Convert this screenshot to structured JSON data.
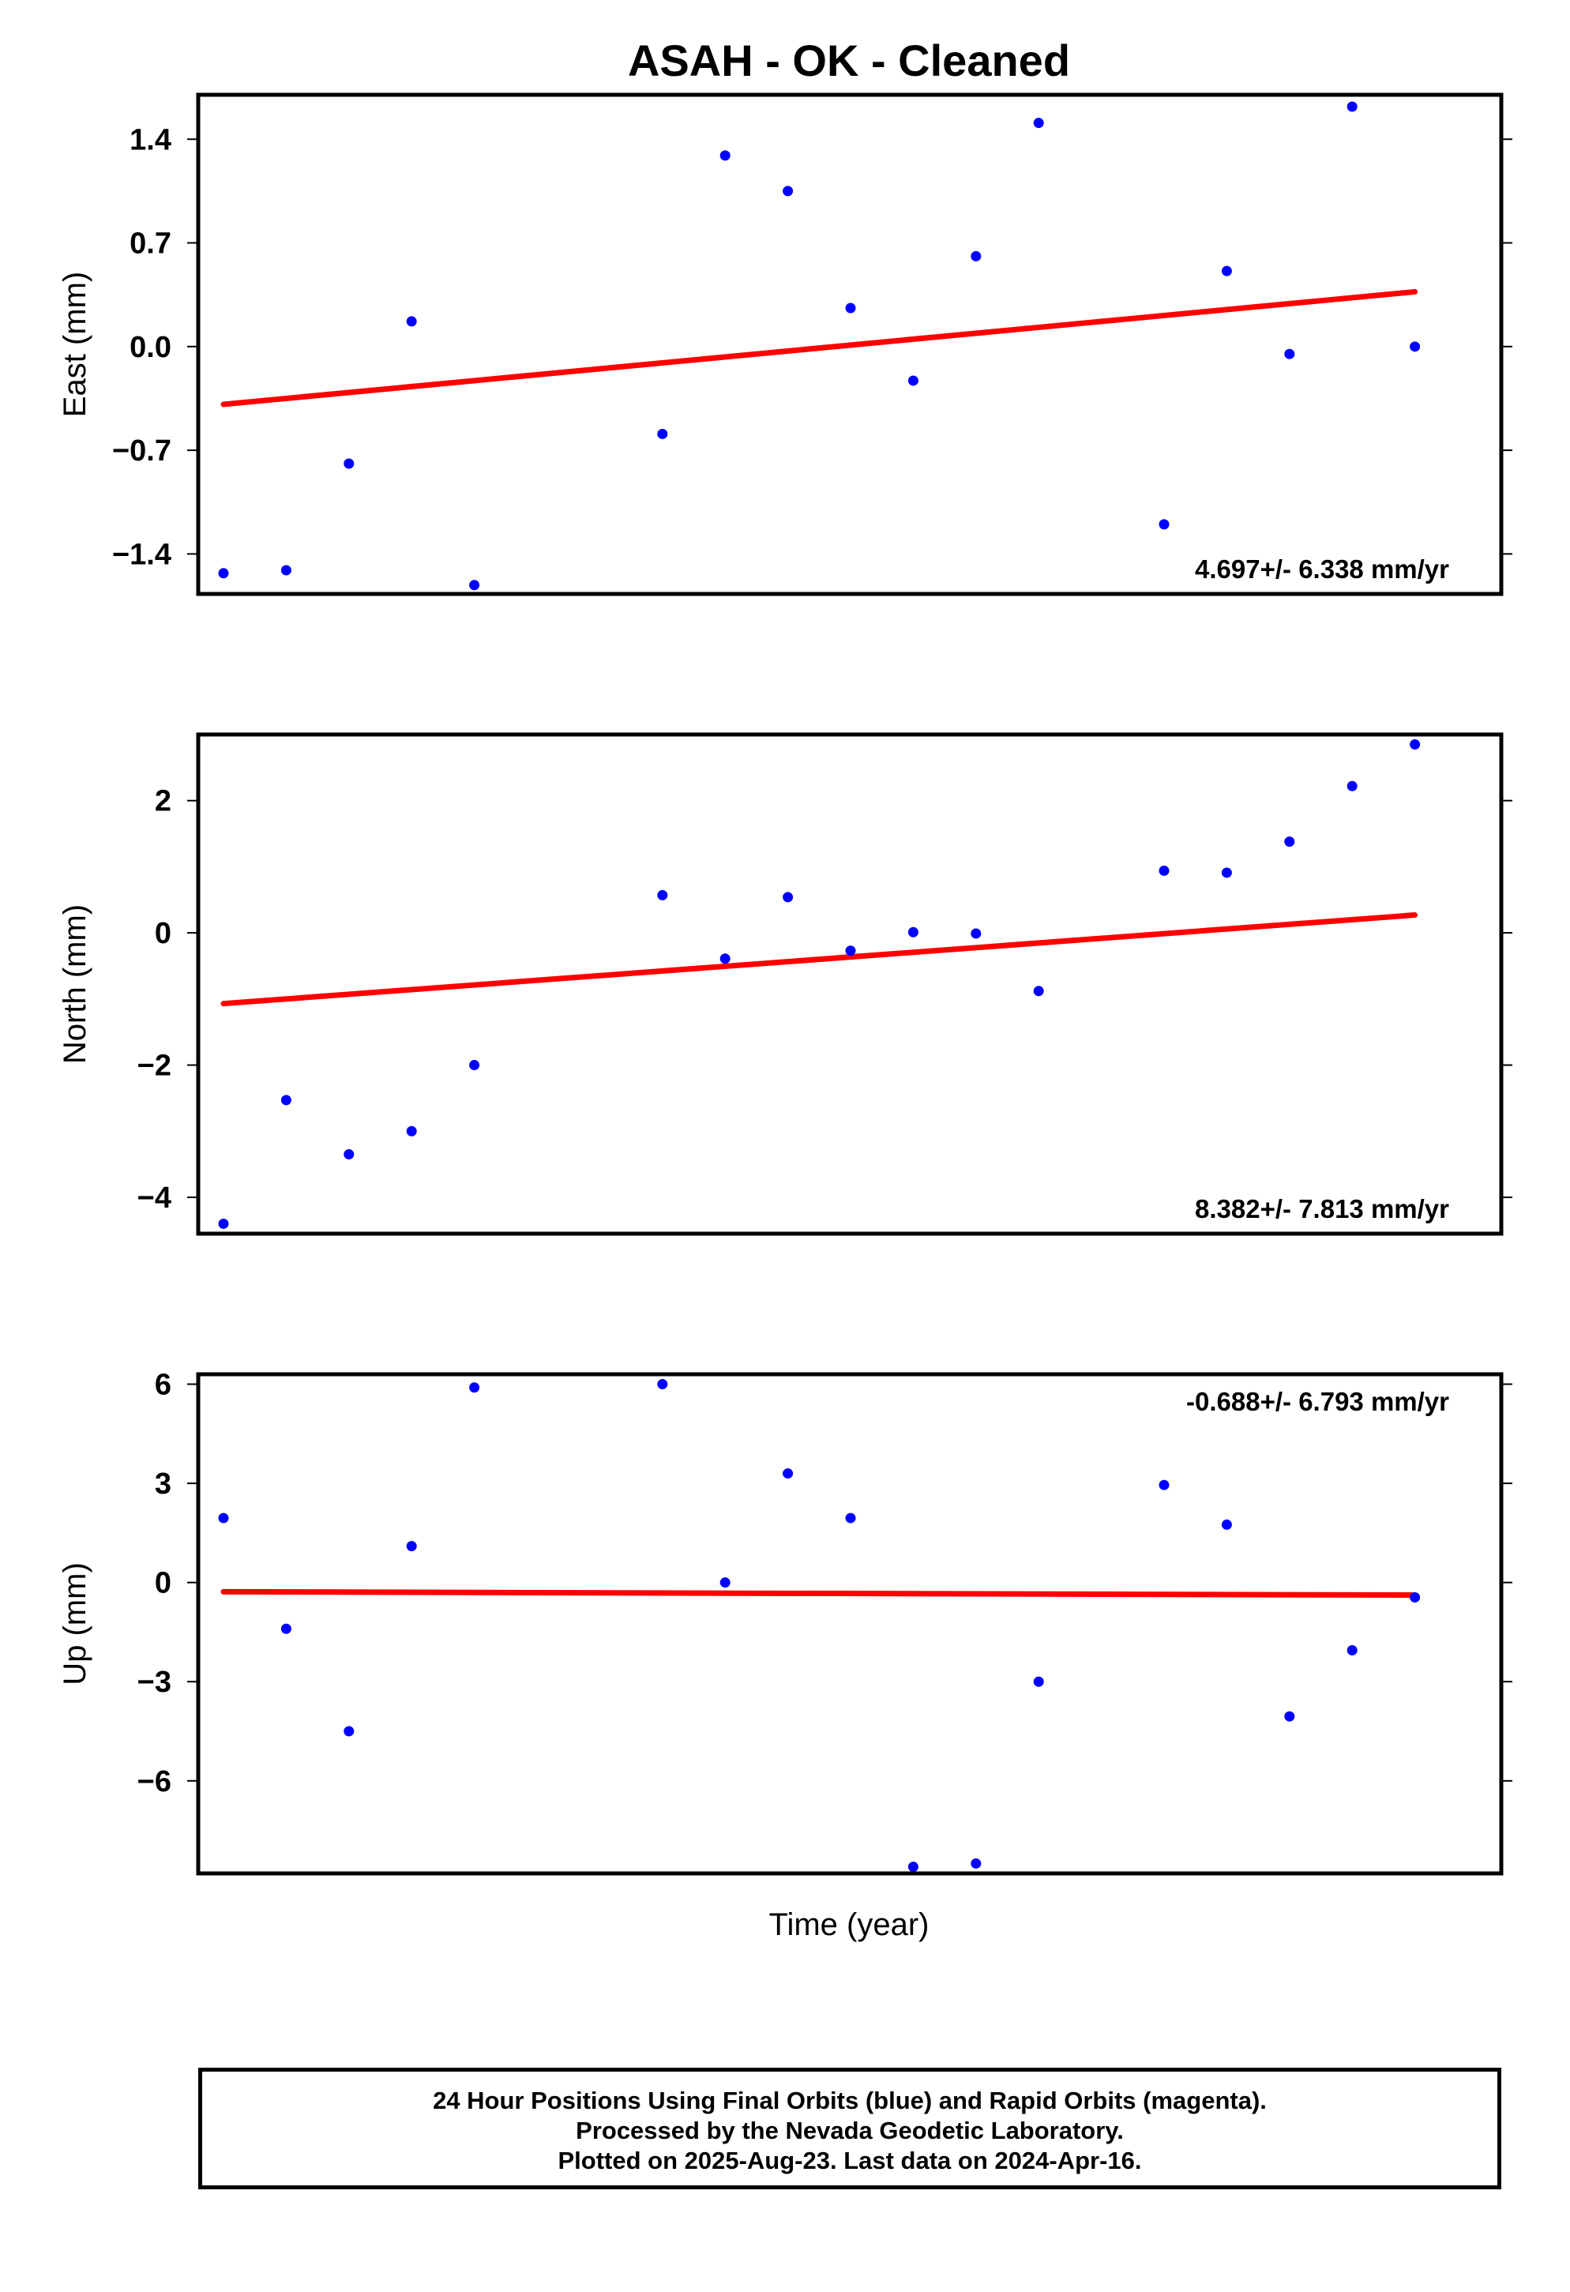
{
  "title": "ASAH  - OK - Cleaned",
  "xlabel": "Time (year)",
  "footer": {
    "line1": "24 Hour Positions Using Final Orbits (blue) and Rapid Orbits (magenta).",
    "line2": "Processed by the Nevada Geodetic Laboratory.",
    "line3": "Plotted on 2025-Aug-23. Last data on 2024-Apr-16."
  },
  "colors": {
    "points": "#0000ff",
    "trend": "#ff0000",
    "frame": "#000000"
  },
  "chart_data": [
    {
      "type": "scatter",
      "ylabel": "East (mm)",
      "rate": "4.697+/- 6.338 mm/yr",
      "yticks": [
        "1.4",
        "0.7",
        "0.0",
        "−0.7",
        "−1.4"
      ],
      "ytick_values": [
        1.4,
        0.7,
        0.0,
        -0.7,
        -1.4
      ],
      "ylim": [
        -1.67,
        1.7
      ],
      "x": [
        0,
        1,
        2,
        3,
        4,
        7,
        8,
        9,
        10,
        11,
        12,
        13,
        15,
        16,
        17,
        18,
        19
      ],
      "values": [
        -1.53,
        -1.51,
        -0.79,
        0.17,
        -1.61,
        -0.59,
        1.29,
        1.05,
        0.26,
        -0.23,
        0.61,
        1.51,
        -1.2,
        0.51,
        -0.05,
        1.62,
        0.0
      ],
      "trend": [
        -0.39,
        0.37
      ]
    },
    {
      "type": "scatter",
      "ylabel": "North (mm)",
      "rate": "8.382+/- 7.813 mm/yr",
      "yticks": [
        "2",
        "0",
        "−2",
        "−4"
      ],
      "ytick_values": [
        2,
        0,
        -2,
        -4
      ],
      "ylim": [
        -4.55,
        3.0
      ],
      "x": [
        0,
        1,
        2,
        3,
        4,
        7,
        8,
        9,
        10,
        11,
        12,
        13,
        15,
        16,
        17,
        18,
        19
      ],
      "values": [
        -4.4,
        -2.53,
        -3.35,
        -3.0,
        -2.0,
        0.57,
        -0.39,
        0.54,
        -0.27,
        0.01,
        -0.01,
        -0.88,
        0.94,
        0.91,
        1.38,
        2.22,
        2.85
      ],
      "trend": [
        -1.07,
        0.27
      ]
    },
    {
      "type": "scatter",
      "ylabel": "Up (mm)",
      "rate": "-0.688+/- 6.793 mm/yr",
      "yticks": [
        "6",
        "3",
        "0",
        "−3",
        "−6"
      ],
      "ytick_values": [
        6,
        3,
        0,
        -3,
        -6
      ],
      "ylim": [
        -8.8,
        6.3
      ],
      "x": [
        0,
        1,
        2,
        3,
        4,
        7,
        8,
        9,
        10,
        11,
        12,
        13,
        15,
        16,
        17,
        18,
        19
      ],
      "values": [
        1.95,
        -1.4,
        -4.5,
        1.1,
        5.9,
        6.0,
        0.0,
        3.3,
        1.95,
        -8.6,
        -8.5,
        -3.0,
        2.95,
        1.75,
        -4.05,
        -2.05,
        -0.45
      ],
      "trend": [
        -0.28,
        -0.38
      ]
    }
  ]
}
